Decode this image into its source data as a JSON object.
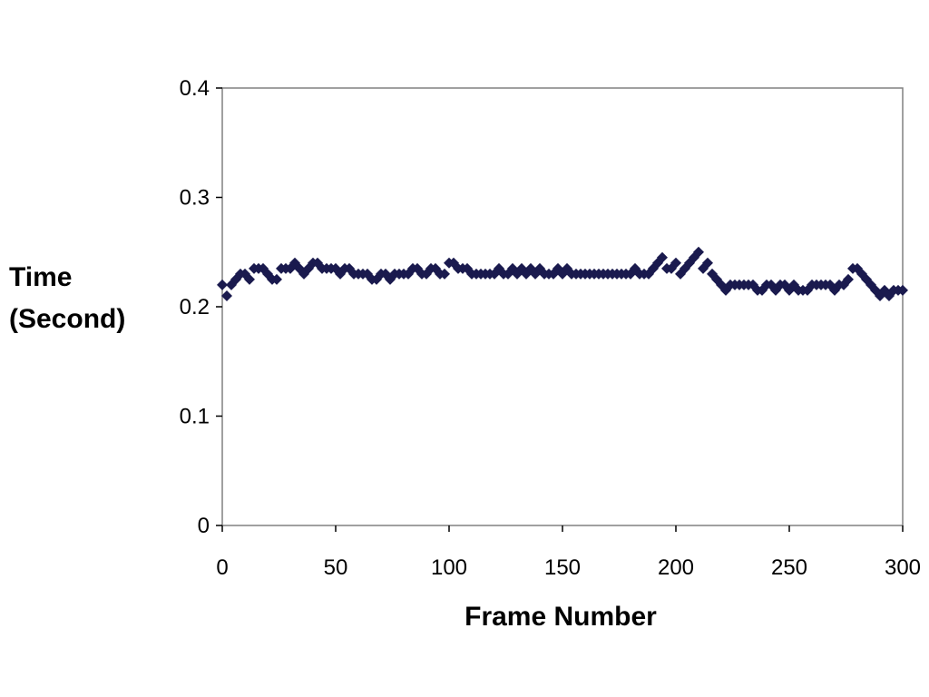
{
  "chart_data": {
    "type": "scatter",
    "xlabel": "Frame Number",
    "ylabel_lines": [
      "Time",
      "(Second)"
    ],
    "xlim": [
      0,
      300
    ],
    "ylim": [
      0,
      0.4
    ],
    "xticks": [
      0,
      50,
      100,
      150,
      200,
      250,
      300
    ],
    "yticks": [
      0,
      0.1,
      0.2,
      0.3,
      0.4
    ],
    "xtick_labels": [
      "0",
      "50",
      "100",
      "150",
      "200",
      "250",
      "300"
    ],
    "ytick_labels": [
      "0",
      "0.1",
      "0.2",
      "0.3",
      "0.4"
    ],
    "grid": false,
    "marker": "diamond",
    "marker_color": "#1a1a4e",
    "series": [
      {
        "x": [
          0,
          2,
          4,
          6,
          8,
          10,
          12,
          14,
          16,
          18,
          20,
          22,
          24,
          26,
          28,
          30,
          32,
          34,
          36,
          38,
          40,
          42,
          44,
          46,
          48,
          50,
          52,
          54,
          56,
          58,
          60,
          62,
          64,
          66,
          68,
          70,
          72,
          74,
          76,
          78,
          80,
          82,
          84,
          86,
          88,
          90,
          92,
          94,
          96,
          98,
          100,
          102,
          104,
          106,
          108,
          110,
          112,
          114,
          116,
          118,
          120,
          122,
          124,
          126,
          128,
          130,
          132,
          134,
          136,
          138,
          140,
          142,
          144,
          146,
          148,
          150,
          152,
          154,
          156,
          158,
          160,
          162,
          164,
          166,
          168,
          170,
          172,
          174,
          176,
          178,
          180,
          182,
          184,
          186,
          188,
          190,
          192,
          194,
          196,
          198,
          200,
          202,
          204,
          206,
          208,
          210,
          212,
          214,
          216,
          218,
          220,
          222,
          224,
          226,
          228,
          230,
          232,
          234,
          236,
          238,
          240,
          242,
          244,
          246,
          248,
          250,
          252,
          254,
          256,
          258,
          260,
          262,
          264,
          266,
          268,
          270,
          272,
          274,
          276,
          278,
          280,
          282,
          284,
          286,
          288,
          290,
          292,
          294,
          296,
          298,
          300
        ],
        "y": [
          0.22,
          0.21,
          0.22,
          0.225,
          0.23,
          0.23,
          0.225,
          0.235,
          0.235,
          0.235,
          0.23,
          0.225,
          0.225,
          0.235,
          0.235,
          0.235,
          0.24,
          0.235,
          0.23,
          0.235,
          0.24,
          0.24,
          0.235,
          0.235,
          0.235,
          0.235,
          0.23,
          0.235,
          0.235,
          0.23,
          0.23,
          0.23,
          0.23,
          0.225,
          0.225,
          0.23,
          0.23,
          0.225,
          0.23,
          0.23,
          0.23,
          0.23,
          0.235,
          0.235,
          0.23,
          0.23,
          0.235,
          0.235,
          0.23,
          0.23,
          0.24,
          0.24,
          0.235,
          0.235,
          0.235,
          0.23,
          0.23,
          0.23,
          0.23,
          0.23,
          0.23,
          0.235,
          0.23,
          0.23,
          0.235,
          0.23,
          0.235,
          0.23,
          0.235,
          0.23,
          0.235,
          0.23,
          0.23,
          0.23,
          0.235,
          0.23,
          0.235,
          0.23,
          0.23,
          0.23,
          0.23,
          0.23,
          0.23,
          0.23,
          0.23,
          0.23,
          0.23,
          0.23,
          0.23,
          0.23,
          0.23,
          0.235,
          0.23,
          0.23,
          0.23,
          0.235,
          0.24,
          0.245,
          0.235,
          0.235,
          0.24,
          0.23,
          0.235,
          0.24,
          0.245,
          0.25,
          0.235,
          0.24,
          0.23,
          0.225,
          0.22,
          0.215,
          0.22,
          0.22,
          0.22,
          0.22,
          0.22,
          0.22,
          0.215,
          0.215,
          0.22,
          0.22,
          0.215,
          0.22,
          0.22,
          0.215,
          0.22,
          0.215,
          0.215,
          0.215,
          0.22,
          0.22,
          0.22,
          0.22,
          0.22,
          0.215,
          0.22,
          0.22,
          0.225,
          0.235,
          0.235,
          0.23,
          0.225,
          0.22,
          0.215,
          0.21,
          0.215,
          0.21,
          0.215,
          0.215,
          0.215
        ]
      }
    ]
  }
}
